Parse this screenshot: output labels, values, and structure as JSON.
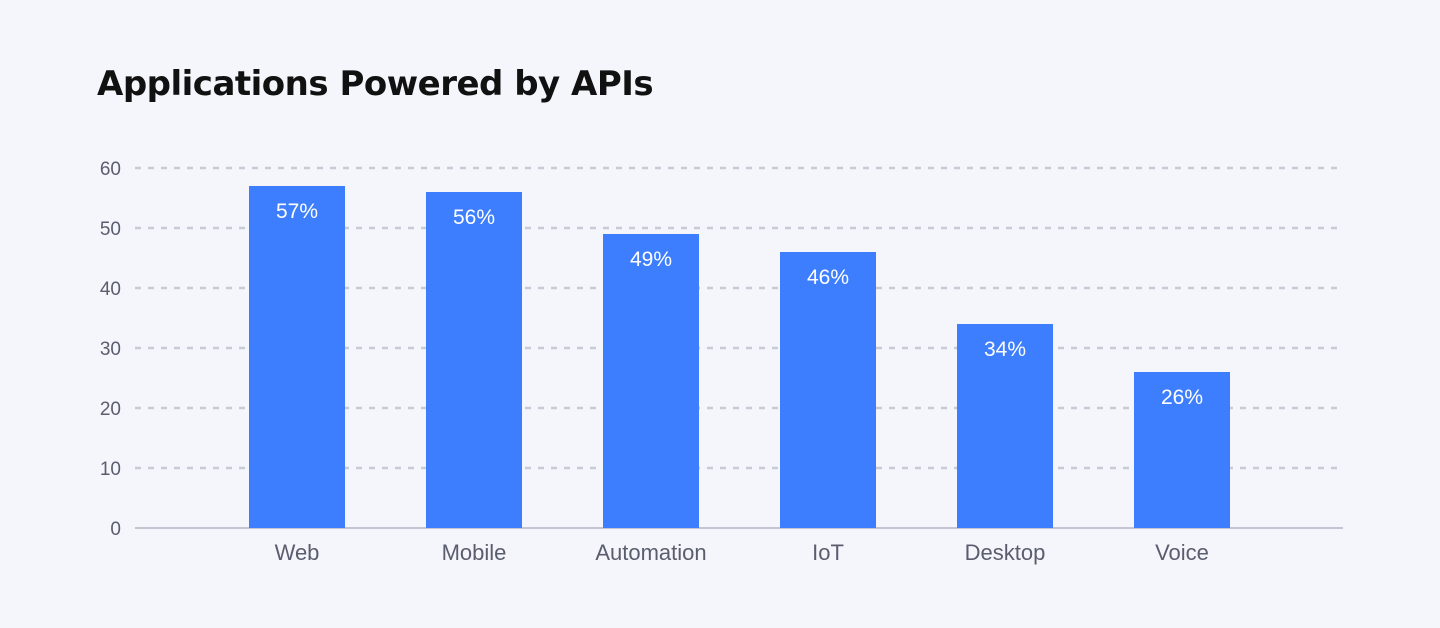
{
  "chart_data": {
    "type": "bar",
    "title": "Applications Powered by APIs",
    "categories": [
      "Web",
      "Mobile",
      "Automation",
      "IoT",
      "Desktop",
      "Voice"
    ],
    "values": [
      57,
      56,
      49,
      46,
      34,
      26
    ],
    "data_labels": [
      "57%",
      "56%",
      "49%",
      "46%",
      "34%",
      "26%"
    ],
    "xlabel": "",
    "ylabel": "",
    "ylim": [
      0,
      60
    ],
    "yticks": [
      0,
      10,
      20,
      30,
      40,
      50,
      60
    ],
    "grid": true,
    "grid_style": "dotted",
    "colors": {
      "bar": "#3d7efe",
      "grid": "#c8cad6",
      "axis": "#c3c5d2",
      "text": "#5a5d6e",
      "background": "#f4f6fb"
    }
  }
}
